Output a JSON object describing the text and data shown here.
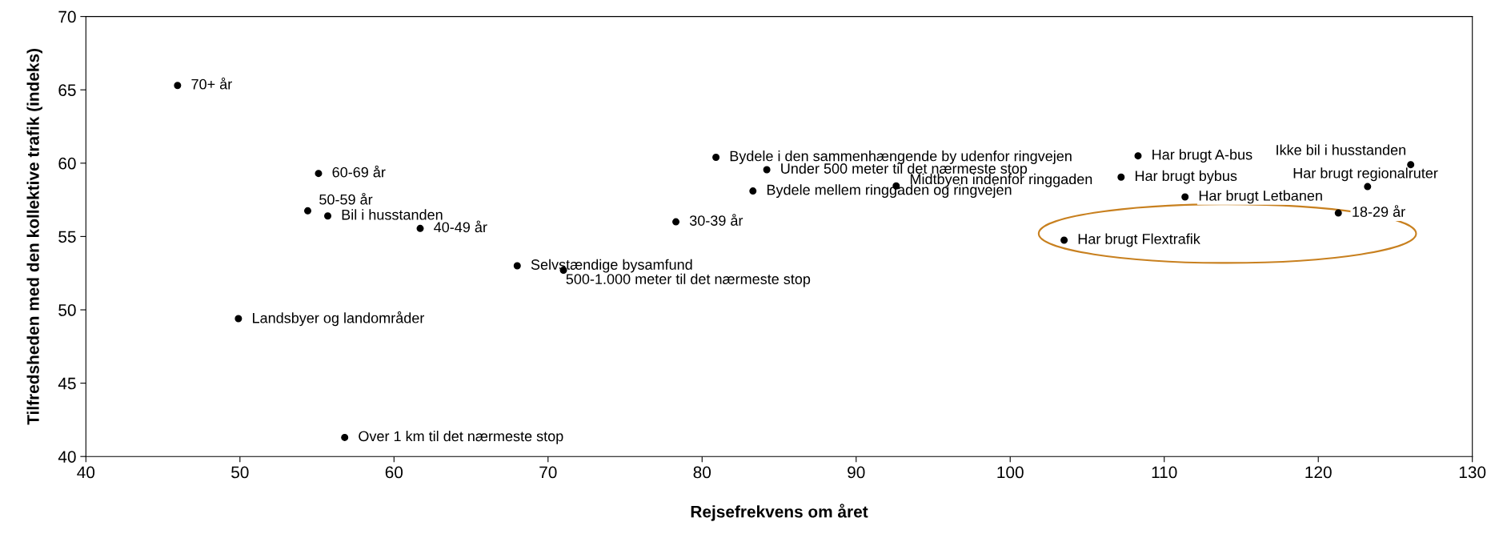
{
  "chart_data": {
    "type": "scatter",
    "xlabel": "Rejsefrekvens om året",
    "ylabel": "Tilfredsheden med den kollektive trafik (indeks)",
    "xlim": [
      40,
      130
    ],
    "xticks": [
      40,
      50,
      60,
      70,
      80,
      90,
      100,
      110,
      120,
      130
    ],
    "ylim": [
      40,
      70
    ],
    "yticks": [
      40,
      45,
      50,
      55,
      60,
      65,
      70
    ],
    "grid": false,
    "legend": false,
    "marker": "circle",
    "series": [
      {
        "color": "#000000",
        "x": [
          45.95,
          55.1,
          54.4,
          55.7,
          61.7,
          49.9,
          56.8,
          68.0,
          71.0,
          78.3,
          80.9,
          84.2,
          83.3,
          92.6,
          108.3,
          107.2,
          111.35,
          103.5,
          121.3,
          123.2,
          126.0
        ],
        "values": [
          65.3,
          59.3,
          56.75,
          56.4,
          55.55,
          49.4,
          41.3,
          53.0,
          52.7,
          56.0,
          60.4,
          59.55,
          58.1,
          58.45,
          60.5,
          59.05,
          57.7,
          54.75,
          56.6,
          58.4,
          59.9
        ]
      }
    ],
    "annotations": [
      {
        "text": "70+ år",
        "x": 45.95,
        "y": 65.3
      },
      {
        "text": "60-69 år",
        "x": 55.1,
        "y": 59.3
      },
      {
        "text": "50-59 år",
        "x": 54.4,
        "y": 56.75
      },
      {
        "text": "Bil i husstanden",
        "x": 55.7,
        "y": 56.4
      },
      {
        "text": "40-49 år",
        "x": 61.7,
        "y": 55.55
      },
      {
        "text": "Landsbyer og landområder",
        "x": 49.9,
        "y": 49.4
      },
      {
        "text": "Over 1 km til det nærmeste stop",
        "x": 56.8,
        "y": 41.3
      },
      {
        "text": "Selvstændige bysamfund",
        "x": 68.0,
        "y": 53.0
      },
      {
        "text": "500-1.000 meter til det nærmeste stop",
        "x": 71.0,
        "y": 52.7
      },
      {
        "text": "30-39 år",
        "x": 78.3,
        "y": 56.0
      },
      {
        "text": "Bydele i den sammenhængende by udenfor ringvejen",
        "x": 80.9,
        "y": 60.4
      },
      {
        "text": "Under 500 meter til det nærmeste stop",
        "x": 84.2,
        "y": 59.55
      },
      {
        "text": "Bydele mellem ringgaden og ringvejen",
        "x": 83.3,
        "y": 58.1
      },
      {
        "text": "Midtbyen indenfor ringgaden",
        "x": 92.6,
        "y": 58.45
      },
      {
        "text": "Har brugt A-bus",
        "x": 108.3,
        "y": 60.5
      },
      {
        "text": "Har brugt bybus",
        "x": 107.2,
        "y": 59.05
      },
      {
        "text": "Har brugt Letbanen",
        "x": 111.35,
        "y": 57.7
      },
      {
        "text": "Har brugt Flextrafik",
        "x": 103.5,
        "y": 54.75
      },
      {
        "text": "18-29 år",
        "x": 121.3,
        "y": 56.6
      },
      {
        "text": "Har brugt regionalruter",
        "x": 123.2,
        "y": 58.4
      },
      {
        "text": "Ikke bil i husstanden",
        "x": 126.0,
        "y": 59.9
      }
    ]
  }
}
